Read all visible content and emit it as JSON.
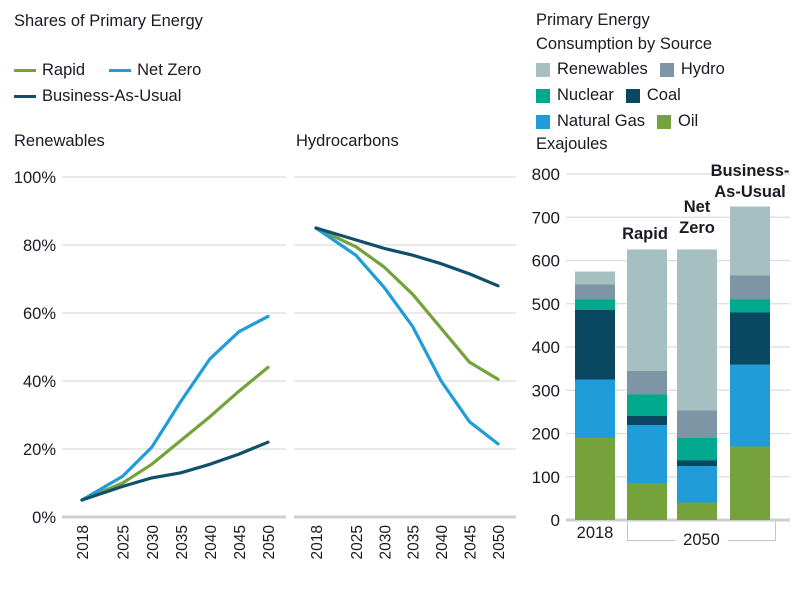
{
  "page": {
    "background": "#ffffff",
    "text_color": "#1a1a24",
    "grid_color": "#dcdddd",
    "axis_color": "#cdd1d2"
  },
  "left_section": {
    "title": "Shares of Primary Energy",
    "legend": [
      {
        "label": "Rapid",
        "color": "#76a23c"
      },
      {
        "label": "Net Zero",
        "color": "#209dd8"
      },
      {
        "label": "Business-As-Usual",
        "color": "#11506a"
      }
    ]
  },
  "right_section": {
    "title_line1": "Primary Energy",
    "title_line2": "Consumption by Source",
    "unit_label": "Exajoules",
    "legend": [
      {
        "label": "Renewables",
        "color": "#a6bfc1"
      },
      {
        "label": "Hydro",
        "color": "#7d95a4"
      },
      {
        "label": "Nuclear",
        "color": "#00a88d"
      },
      {
        "label": "Coal",
        "color": "#0a4760"
      },
      {
        "label": "Natural Gas",
        "color": "#209dd8"
      },
      {
        "label": "Oil",
        "color": "#76a23c"
      }
    ]
  },
  "bar_chart_labels": {
    "rapid": "Rapid",
    "net_zero": [
      "Net",
      "Zero"
    ],
    "bau": [
      "Business-",
      "As-Usual"
    ],
    "x_2018": "2018",
    "x_2050": "2050"
  },
  "chart_data": [
    {
      "type": "line",
      "title": "Renewables",
      "x": [
        2018,
        2025,
        2030,
        2035,
        2040,
        2045,
        2050
      ],
      "series": [
        {
          "name": "Rapid",
          "color": "#76a23c",
          "values": [
            5,
            10,
            15.5,
            22.5,
            29.5,
            37,
            44
          ]
        },
        {
          "name": "Net Zero",
          "color": "#209dd8",
          "values": [
            5,
            12,
            20.5,
            34,
            46.5,
            54.5,
            59
          ]
        },
        {
          "name": "Business-As-Usual",
          "color": "#11506a",
          "values": [
            5,
            9,
            11.5,
            13,
            15.5,
            18.5,
            22
          ]
        }
      ],
      "ylim": [
        0,
        100
      ],
      "yticks": [
        0,
        20,
        40,
        60,
        80,
        100
      ],
      "ytick_suffix": "%",
      "show_y_labels": true,
      "grid": true,
      "legend_position": "top-left"
    },
    {
      "type": "line",
      "title": "Hydrocarbons",
      "x": [
        2018,
        2025,
        2030,
        2035,
        2040,
        2045,
        2050
      ],
      "series": [
        {
          "name": "Rapid",
          "color": "#76a23c",
          "values": [
            85,
            79.5,
            73.5,
            65.5,
            55.5,
            45.5,
            40.5
          ]
        },
        {
          "name": "Net Zero",
          "color": "#209dd8",
          "values": [
            85,
            77,
            67.5,
            56,
            40,
            28,
            21.5
          ]
        },
        {
          "name": "Business-As-Usual",
          "color": "#11506a",
          "values": [
            85,
            81.5,
            79,
            77,
            74.5,
            71.5,
            68
          ]
        }
      ],
      "ylim": [
        0,
        100
      ],
      "yticks": [
        0,
        20,
        40,
        60,
        80,
        100
      ],
      "ytick_suffix": "%",
      "show_y_labels": false,
      "grid": true
    },
    {
      "type": "stacked_bar",
      "title": "Primary Energy Consumption by Source",
      "ylabel": "Exajoules",
      "categories": [
        "2018",
        "Rapid",
        "Net Zero",
        "Business-As-Usual"
      ],
      "stack_order": "bottom-to-top",
      "series": [
        {
          "name": "Oil",
          "color": "#76a23c",
          "values": [
            190,
            85,
            40,
            170
          ]
        },
        {
          "name": "Natural Gas",
          "color": "#209dd8",
          "values": [
            135,
            135,
            85,
            190
          ]
        },
        {
          "name": "Coal",
          "color": "#0a4760",
          "values": [
            160,
            20,
            12,
            120
          ]
        },
        {
          "name": "Nuclear",
          "color": "#00a88d",
          "values": [
            25,
            50,
            53,
            30
          ]
        },
        {
          "name": "Hydro",
          "color": "#7d95a4",
          "values": [
            35,
            55,
            63,
            55
          ]
        },
        {
          "name": "Renewables",
          "color": "#a6bfc1",
          "values": [
            30,
            280,
            372,
            160
          ]
        }
      ],
      "totals": [
        575,
        625,
        625,
        725
      ],
      "ylim": [
        0,
        800
      ],
      "yticks": [
        0,
        100,
        200,
        300,
        400,
        500,
        600,
        700,
        800
      ],
      "grid": true,
      "x_group_note": "2050 bracket spans Rapid, Net Zero and Business-As-Usual bars"
    }
  ]
}
